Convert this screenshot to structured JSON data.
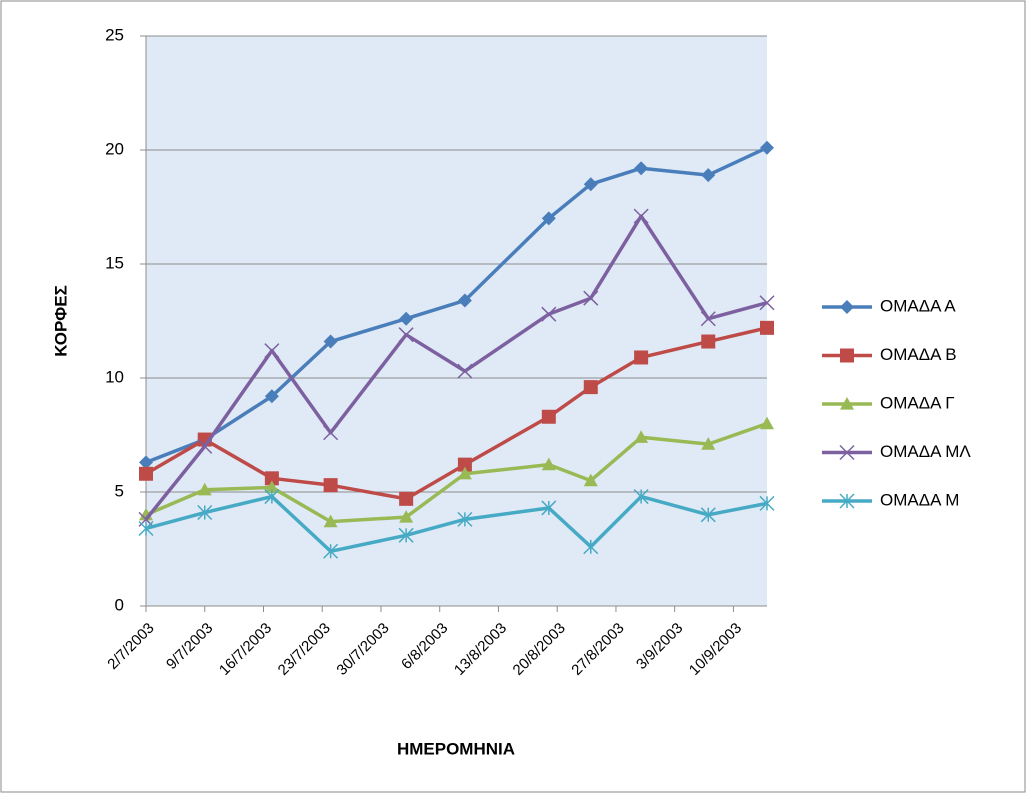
{
  "chart_data": {
    "type": "line",
    "y_label": "ΚΟΡΦΕΣ",
    "x_label": "ΗΜΕΡΟΜΗΝΙΑ",
    "x": [
      "2/7/2003",
      "9/7/2003",
      "17/7/2003",
      "24/7/2003",
      "2/8/2003",
      "9/8/2003",
      "19/8/2003",
      "24/8/2003",
      "30/8/2003",
      "7/9/2003",
      "14/9/2003"
    ],
    "xlim": [
      "2/7/2003",
      "14/9/2003"
    ],
    "xticks": [
      "2/7/2003",
      "9/7/2003",
      "16/7/2003",
      "23/7/2003",
      "30/7/2003",
      "6/8/2003",
      "13/8/2003",
      "20/8/2003",
      "27/8/2003",
      "3/9/2003",
      "10/9/2003"
    ],
    "ylim": [
      0,
      25
    ],
    "yticks": [
      0,
      5,
      10,
      15,
      20,
      25
    ],
    "grid": true,
    "legend": "right",
    "series": [
      {
        "name": "ΟΜΑΔΑ Α",
        "color": "#4a7ebb",
        "marker": "diamond",
        "values": [
          6.3,
          7.3,
          9.2,
          11.6,
          12.6,
          13.4,
          17.0,
          18.5,
          19.2,
          18.9,
          20.1
        ]
      },
      {
        "name": "ΟΜΑΔΑ Β",
        "color": "#be4b48",
        "marker": "square",
        "values": [
          5.8,
          7.3,
          5.6,
          5.3,
          4.7,
          6.2,
          8.3,
          9.6,
          10.9,
          11.6,
          12.2
        ]
      },
      {
        "name": "ΟΜΑΔΑ Γ",
        "color": "#98b954",
        "marker": "triangle",
        "values": [
          4.0,
          5.1,
          5.2,
          3.7,
          3.9,
          5.8,
          6.2,
          5.5,
          7.4,
          7.1,
          8.0
        ]
      },
      {
        "name": "ΟΜΑΔΑ ΜΛ",
        "color": "#7d60a0",
        "marker": "x",
        "values": [
          3.8,
          7.0,
          11.2,
          7.6,
          11.9,
          10.3,
          12.8,
          13.5,
          17.1,
          12.6,
          13.3
        ]
      },
      {
        "name": "ΟΜΑΔΑ Μ",
        "color": "#46aac5",
        "marker": "star",
        "values": [
          3.4,
          4.1,
          4.8,
          2.4,
          3.1,
          3.8,
          4.3,
          2.6,
          4.8,
          4.0,
          4.5
        ]
      }
    ]
  }
}
